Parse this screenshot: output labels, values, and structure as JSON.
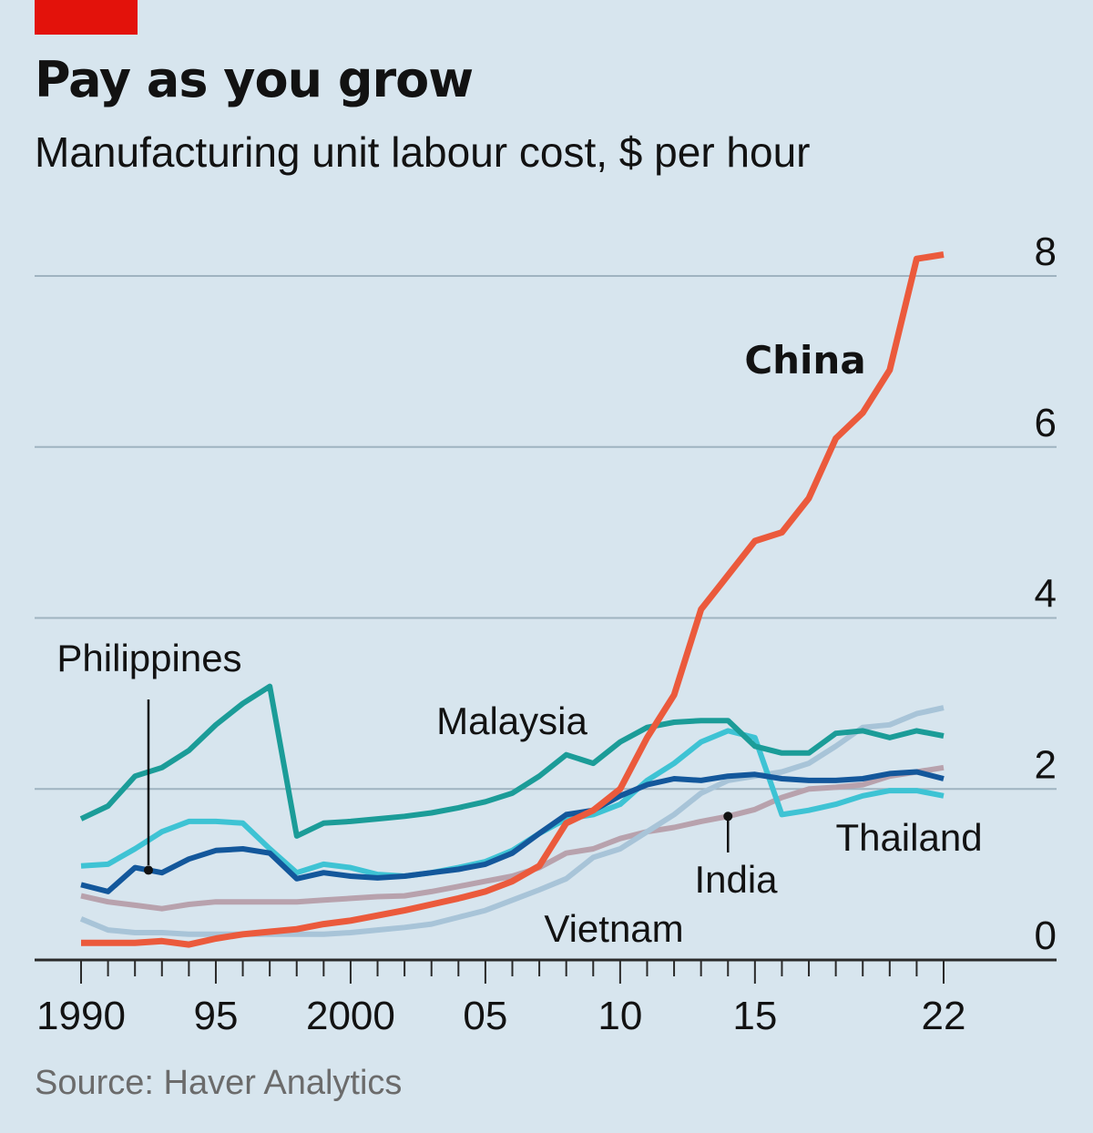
{
  "header": {
    "title": "Pay as you grow",
    "subtitle": "Manufacturing unit labour cost, $ per hour"
  },
  "footer": {
    "source": "Source: Haver Analytics"
  },
  "colors": {
    "background": "#d7e5ee",
    "accent": "#e3120b",
    "china": "#eb5a3c",
    "malaysia": "#1b9c98",
    "thailand": "#3ec3d4",
    "philippines": "#13579b",
    "india": "#b8a2ad",
    "vietnam": "#a8c4d8",
    "grid": "#9fb3c0"
  },
  "chart_data": {
    "type": "line",
    "title": "Pay as you grow",
    "subtitle": "Manufacturing unit labour cost, $ per hour",
    "xlabel": "",
    "ylabel": "",
    "xlim": [
      1990,
      2022
    ],
    "ylim": [
      0,
      8
    ],
    "y_ticks": [
      0,
      2,
      4,
      6,
      8
    ],
    "y_tick_labels": [
      "0",
      "2",
      "4",
      "6",
      "8"
    ],
    "y_axis_position": "right",
    "x_labeled_ticks": [
      1990,
      1995,
      2000,
      2005,
      2010,
      2015,
      2022
    ],
    "x_tick_labels": [
      "1990",
      "95",
      "2000",
      "05",
      "10",
      "15",
      "22"
    ],
    "grid": "horizontal",
    "x": [
      1990,
      1991,
      1992,
      1993,
      1994,
      1995,
      1996,
      1997,
      1998,
      1999,
      2000,
      2001,
      2002,
      2003,
      2004,
      2005,
      2006,
      2007,
      2008,
      2009,
      2010,
      2011,
      2012,
      2013,
      2014,
      2015,
      2016,
      2017,
      2018,
      2019,
      2020,
      2021,
      2022
    ],
    "series": [
      {
        "name": "China",
        "label_style": "bold",
        "values": [
          0.2,
          0.2,
          0.2,
          0.22,
          0.18,
          0.25,
          0.3,
          0.33,
          0.36,
          0.42,
          0.46,
          0.52,
          0.58,
          0.65,
          0.72,
          0.8,
          0.92,
          1.1,
          1.6,
          1.75,
          2.0,
          2.6,
          3.1,
          4.1,
          4.5,
          4.9,
          5.0,
          5.4,
          6.1,
          6.4,
          6.9,
          8.2,
          8.25
        ]
      },
      {
        "name": "Malaysia",
        "values": [
          1.65,
          1.8,
          2.15,
          2.25,
          2.45,
          2.75,
          3.0,
          3.2,
          1.45,
          1.6,
          1.62,
          1.65,
          1.68,
          1.72,
          1.78,
          1.85,
          1.95,
          2.15,
          2.4,
          2.3,
          2.55,
          2.72,
          2.78,
          2.8,
          2.8,
          2.5,
          2.42,
          2.42,
          2.65,
          2.68,
          2.6,
          2.68,
          2.62
        ]
      },
      {
        "name": "Thailand",
        "values": [
          1.1,
          1.12,
          1.3,
          1.5,
          1.62,
          1.62,
          1.6,
          1.3,
          1.02,
          1.12,
          1.08,
          1.0,
          0.98,
          1.02,
          1.08,
          1.15,
          1.28,
          1.48,
          1.65,
          1.7,
          1.82,
          2.1,
          2.3,
          2.55,
          2.68,
          2.6,
          1.7,
          1.75,
          1.82,
          1.92,
          1.98,
          1.98,
          1.92
        ]
      },
      {
        "name": "Philippines",
        "values": [
          0.88,
          0.8,
          1.08,
          1.02,
          1.18,
          1.28,
          1.3,
          1.25,
          0.95,
          1.02,
          0.98,
          0.96,
          0.98,
          1.02,
          1.06,
          1.12,
          1.25,
          1.48,
          1.7,
          1.75,
          1.92,
          2.05,
          2.12,
          2.1,
          2.15,
          2.17,
          2.12,
          2.1,
          2.1,
          2.12,
          2.18,
          2.2,
          2.12
        ]
      },
      {
        "name": "India",
        "values": [
          0.75,
          0.68,
          0.64,
          0.6,
          0.65,
          0.68,
          0.68,
          0.68,
          0.68,
          0.7,
          0.72,
          0.74,
          0.75,
          0.8,
          0.86,
          0.92,
          0.98,
          1.08,
          1.25,
          1.3,
          1.42,
          1.5,
          1.55,
          1.62,
          1.68,
          1.76,
          1.9,
          2.0,
          2.02,
          2.05,
          2.15,
          2.2,
          2.25
        ]
      },
      {
        "name": "Vietnam",
        "values": [
          0.48,
          0.35,
          0.32,
          0.32,
          0.3,
          0.3,
          0.3,
          0.3,
          0.3,
          0.3,
          0.32,
          0.35,
          0.38,
          0.42,
          0.5,
          0.58,
          0.7,
          0.82,
          0.95,
          1.2,
          1.3,
          1.5,
          1.7,
          1.95,
          2.1,
          2.15,
          2.2,
          2.3,
          2.5,
          2.72,
          2.75,
          2.88,
          2.95
        ]
      }
    ],
    "annotations": [
      {
        "text": "Philippines",
        "points_to_series": "Philippines",
        "x": 1992.5
      },
      {
        "text": "India",
        "points_to_series": "India",
        "x": 2014
      }
    ]
  }
}
